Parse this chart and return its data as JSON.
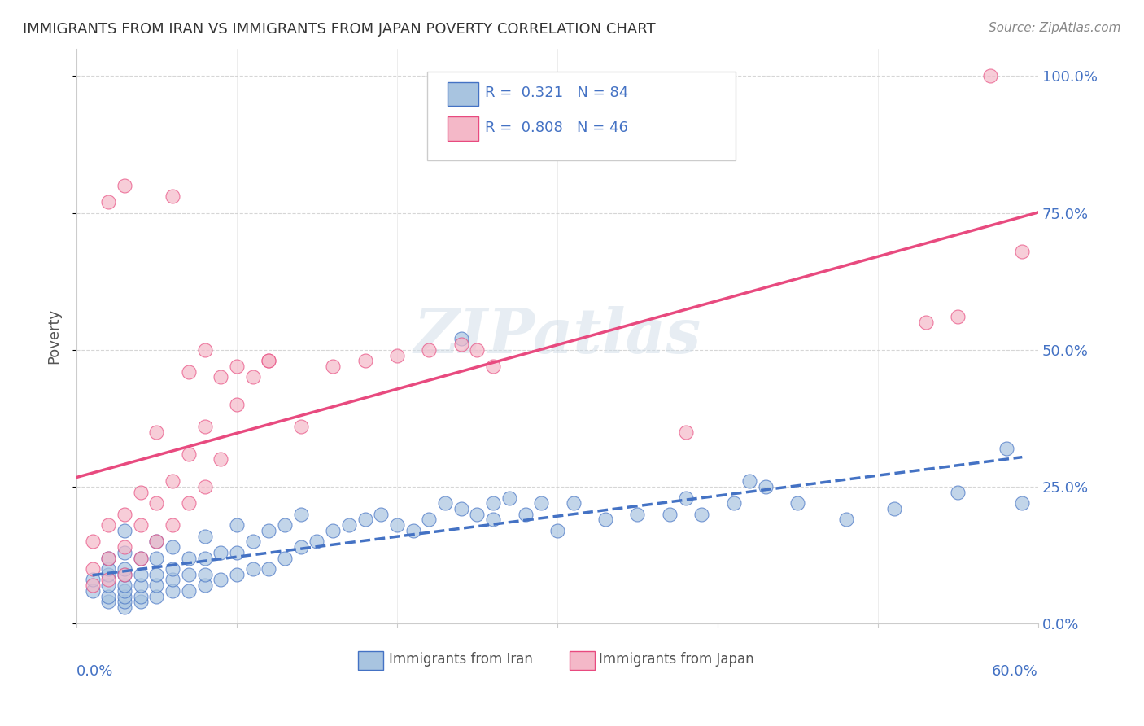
{
  "title": "IMMIGRANTS FROM IRAN VS IMMIGRANTS FROM JAPAN POVERTY CORRELATION CHART",
  "source": "Source: ZipAtlas.com",
  "ylabel": "Poverty",
  "yticks": [
    "0.0%",
    "25.0%",
    "50.0%",
    "75.0%",
    "100.0%"
  ],
  "ytick_vals": [
    0.0,
    0.25,
    0.5,
    0.75,
    1.0
  ],
  "xlim": [
    0.0,
    0.6
  ],
  "ylim": [
    0.0,
    1.05
  ],
  "iran_R": 0.321,
  "iran_N": 84,
  "japan_R": 0.808,
  "japan_N": 46,
  "iran_color": "#a8c4e0",
  "iran_line_color": "#4472c4",
  "japan_color": "#f4b8c8",
  "japan_line_color": "#e84a7f",
  "legend_iran_label": "R =  0.321   N = 84",
  "legend_japan_label": "R =  0.808   N = 46",
  "legend_label_iran": "Immigrants from Iran",
  "legend_label_japan": "Immigrants from Japan",
  "watermark": "ZIPatlas",
  "iran_scatter_x": [
    0.01,
    0.01,
    0.02,
    0.02,
    0.02,
    0.02,
    0.02,
    0.02,
    0.03,
    0.03,
    0.03,
    0.03,
    0.03,
    0.03,
    0.03,
    0.03,
    0.03,
    0.04,
    0.04,
    0.04,
    0.04,
    0.04,
    0.05,
    0.05,
    0.05,
    0.05,
    0.05,
    0.06,
    0.06,
    0.06,
    0.06,
    0.07,
    0.07,
    0.07,
    0.08,
    0.08,
    0.08,
    0.08,
    0.09,
    0.09,
    0.1,
    0.1,
    0.1,
    0.11,
    0.11,
    0.12,
    0.12,
    0.13,
    0.13,
    0.14,
    0.14,
    0.15,
    0.16,
    0.17,
    0.18,
    0.19,
    0.2,
    0.21,
    0.22,
    0.23,
    0.24,
    0.25,
    0.26,
    0.27,
    0.28,
    0.29,
    0.3,
    0.31,
    0.33,
    0.35,
    0.37,
    0.39,
    0.41,
    0.43,
    0.45,
    0.24,
    0.26,
    0.38,
    0.42,
    0.48,
    0.51,
    0.55,
    0.58,
    0.59
  ],
  "iran_scatter_y": [
    0.06,
    0.08,
    0.04,
    0.05,
    0.07,
    0.09,
    0.1,
    0.12,
    0.03,
    0.04,
    0.05,
    0.06,
    0.07,
    0.09,
    0.1,
    0.13,
    0.17,
    0.04,
    0.05,
    0.07,
    0.09,
    0.12,
    0.05,
    0.07,
    0.09,
    0.12,
    0.15,
    0.06,
    0.08,
    0.1,
    0.14,
    0.06,
    0.09,
    0.12,
    0.07,
    0.09,
    0.12,
    0.16,
    0.08,
    0.13,
    0.09,
    0.13,
    0.18,
    0.1,
    0.15,
    0.1,
    0.17,
    0.12,
    0.18,
    0.14,
    0.2,
    0.15,
    0.17,
    0.18,
    0.19,
    0.2,
    0.18,
    0.17,
    0.19,
    0.22,
    0.21,
    0.2,
    0.19,
    0.23,
    0.2,
    0.22,
    0.17,
    0.22,
    0.19,
    0.2,
    0.2,
    0.2,
    0.22,
    0.25,
    0.22,
    0.52,
    0.22,
    0.23,
    0.26,
    0.19,
    0.21,
    0.24,
    0.32,
    0.22
  ],
  "japan_scatter_x": [
    0.01,
    0.01,
    0.01,
    0.02,
    0.02,
    0.02,
    0.03,
    0.03,
    0.03,
    0.04,
    0.04,
    0.04,
    0.05,
    0.05,
    0.06,
    0.06,
    0.07,
    0.07,
    0.08,
    0.08,
    0.09,
    0.1,
    0.11,
    0.12,
    0.14,
    0.16,
    0.18,
    0.2,
    0.22,
    0.24,
    0.26,
    0.05,
    0.07,
    0.09,
    0.1,
    0.12,
    0.38,
    0.02,
    0.03,
    0.06,
    0.08,
    0.25,
    0.53,
    0.55,
    0.57,
    0.59
  ],
  "japan_scatter_y": [
    0.07,
    0.1,
    0.15,
    0.08,
    0.12,
    0.18,
    0.09,
    0.14,
    0.2,
    0.12,
    0.18,
    0.24,
    0.15,
    0.22,
    0.18,
    0.26,
    0.22,
    0.31,
    0.25,
    0.36,
    0.3,
    0.4,
    0.45,
    0.48,
    0.36,
    0.47,
    0.48,
    0.49,
    0.5,
    0.51,
    0.47,
    0.35,
    0.46,
    0.45,
    0.47,
    0.48,
    0.35,
    0.77,
    0.8,
    0.78,
    0.5,
    0.5,
    0.55,
    0.56,
    1.0,
    0.68
  ]
}
